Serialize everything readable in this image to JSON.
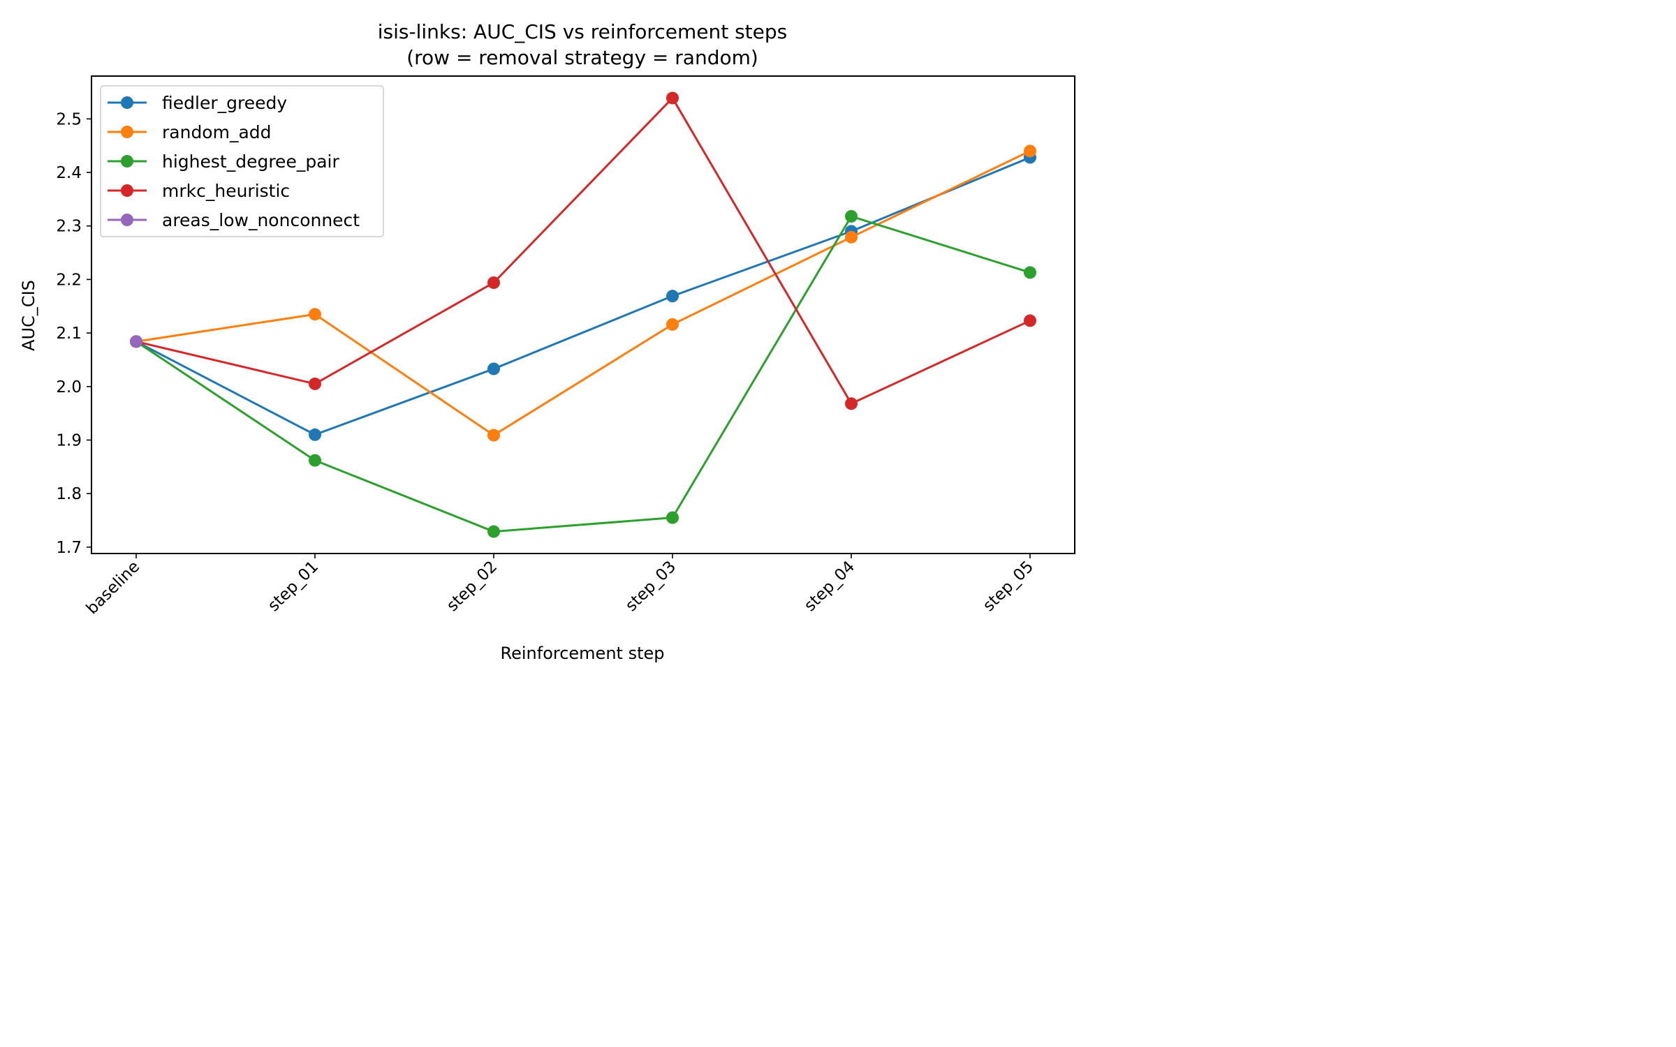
{
  "chart_data": {
    "type": "line",
    "title": "isis-links: AUC_CIS vs reinforcement steps",
    "subtitle": "(row = removal strategy = random)",
    "xlabel": "Reinforcement step",
    "ylabel": "AUC_CIS",
    "categories": [
      "baseline",
      "step_01",
      "step_02",
      "step_03",
      "step_04",
      "step_05"
    ],
    "ylim": [
      1.688,
      2.58
    ],
    "yticks": [
      1.7,
      1.8,
      1.9,
      2.0,
      2.1,
      2.2,
      2.3,
      2.4,
      2.5
    ],
    "ytick_labels": [
      "1.7",
      "1.8",
      "1.9",
      "2.0",
      "2.1",
      "2.2",
      "2.3",
      "2.4",
      "2.5"
    ],
    "grid": false,
    "legend_position": "upper-left",
    "series": [
      {
        "name": "fiedler_greedy",
        "color": "#1f77b4",
        "values": [
          2.084,
          1.91,
          2.033,
          2.169,
          2.29,
          2.428
        ]
      },
      {
        "name": "random_add",
        "color": "#ff7f0e",
        "values": [
          2.084,
          2.135,
          1.909,
          2.116,
          2.279,
          2.44
        ]
      },
      {
        "name": "highest_degree_pair",
        "color": "#2ca02c",
        "values": [
          2.084,
          1.862,
          1.729,
          1.755,
          2.318,
          2.213
        ]
      },
      {
        "name": "mrkc_heuristic",
        "color": "#d62728",
        "values": [
          2.084,
          2.005,
          2.194,
          2.539,
          1.968,
          2.123
        ]
      },
      {
        "name": "areas_low_nonconnect",
        "color": "#9467bd",
        "values": [
          2.084,
          null,
          null,
          null,
          null,
          null
        ]
      }
    ]
  }
}
